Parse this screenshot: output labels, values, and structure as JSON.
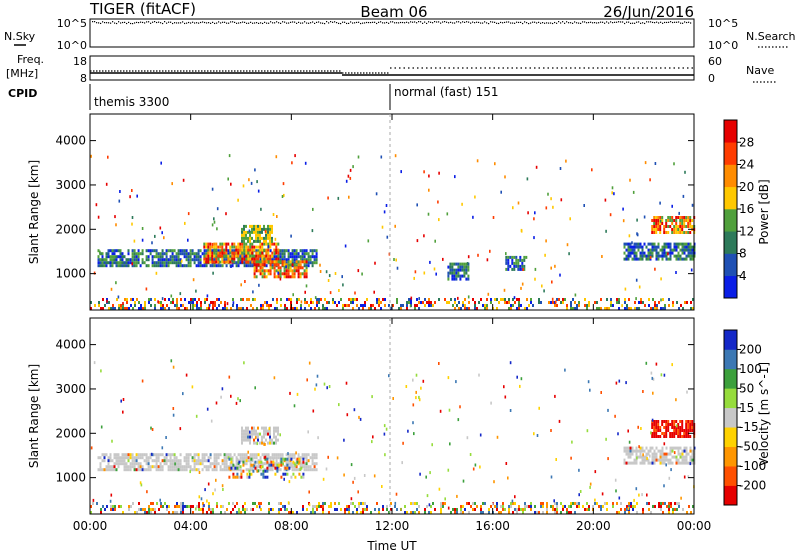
{
  "header": {
    "title": "TIGER (fitACF)",
    "beam": "Beam 06",
    "date": "26/Jun/2016"
  },
  "noise_panel": {
    "left_label": "N.Sky",
    "right_label": "N.Search",
    "left_ticks": [
      "10^5",
      "10^0"
    ],
    "right_ticks": [
      "10^5",
      "10^0"
    ]
  },
  "freq_panel": {
    "left_label_1": "Freq.",
    "left_label_2": "[MHz]",
    "right_label": "Nave",
    "left_ticks": [
      "18",
      "8"
    ],
    "right_ticks": [
      "60",
      "0"
    ]
  },
  "cpid_panel": {
    "label": "CPID",
    "segments": [
      {
        "name": "themis 3300",
        "start_hour": 0
      },
      {
        "name": "normal (fast) 151",
        "start_hour": 12
      }
    ]
  },
  "chart_data": [
    {
      "type": "heatmap",
      "panel": "power",
      "xlabel": "",
      "ylabel": "Slant Range [km]",
      "xlim": [
        0,
        24
      ],
      "ylim": [
        180,
        4600
      ],
      "yticks": [
        "1000",
        "2000",
        "3000",
        "4000"
      ],
      "colorbar_label": "Power [dB]",
      "colorbar_ticks": [
        "4",
        "8",
        "12",
        "16",
        "20",
        "24",
        "28"
      ],
      "colorbar_colors": [
        "#0a1ee6",
        "#1f50b4",
        "#2d7a5a",
        "#50a03c",
        "#ffc800",
        "#ff8c00",
        "#ff3c00",
        "#e60000"
      ],
      "regions": [
        {
          "t": [
            0.3,
            9.0
          ],
          "r": [
            1180,
            1550
          ],
          "level": "low"
        },
        {
          "t": [
            4.5,
            7.5
          ],
          "r": [
            1250,
            1700
          ],
          "level": "high"
        },
        {
          "t": [
            6.5,
            8.6
          ],
          "r": [
            950,
            1300
          ],
          "level": "high"
        },
        {
          "t": [
            6.0,
            7.2
          ],
          "r": [
            1750,
            2100
          ],
          "level": "mid"
        },
        {
          "t": [
            0.0,
            24.0
          ],
          "r": [
            200,
            450
          ],
          "level": "mixed"
        },
        {
          "t": [
            22.3,
            24.0
          ],
          "r": [
            1900,
            2300
          ],
          "level": "high"
        },
        {
          "t": [
            21.2,
            24.0
          ],
          "r": [
            1300,
            1700
          ],
          "level": "low"
        },
        {
          "t": [
            14.2,
            15.0
          ],
          "r": [
            900,
            1250
          ],
          "level": "low"
        },
        {
          "t": [
            16.5,
            17.3
          ],
          "r": [
            1100,
            1400
          ],
          "level": "low"
        }
      ]
    },
    {
      "type": "heatmap",
      "panel": "velocity",
      "xlabel": "Time UT",
      "ylabel": "Slant Range [km]",
      "xlim": [
        0,
        24
      ],
      "ylim": [
        180,
        4600
      ],
      "xticks": [
        "00:00",
        "04:00",
        "08:00",
        "12:00",
        "16:00",
        "20:00",
        "00:00"
      ],
      "yticks": [
        "1000",
        "2000",
        "3000",
        "4000"
      ],
      "colorbar_label": "Velocity [m s^-1]",
      "colorbar_ticks": [
        "200",
        "100",
        "50",
        "15",
        "-15",
        "-50",
        "-100",
        "-200"
      ],
      "colorbar_colors": [
        "#1428c8",
        "#3c78b4",
        "#3ca03c",
        "#96dc3c",
        "#c8c8c8",
        "#ffd200",
        "#ff9600",
        "#ff5000",
        "#e60000"
      ],
      "regions": [
        {
          "t": [
            0.3,
            9.0
          ],
          "r": [
            1180,
            1550
          ],
          "level": "ground"
        },
        {
          "t": [
            5.5,
            8.5
          ],
          "r": [
            1000,
            1450
          ],
          "level": "mixed"
        },
        {
          "t": [
            6.0,
            7.5
          ],
          "r": [
            1800,
            2150
          ],
          "level": "ground"
        },
        {
          "t": [
            0.0,
            24.0
          ],
          "r": [
            200,
            450
          ],
          "level": "mixed"
        },
        {
          "t": [
            22.3,
            24.0
          ],
          "r": [
            1900,
            2300
          ],
          "level": "negative"
        },
        {
          "t": [
            21.2,
            24.0
          ],
          "r": [
            1300,
            1700
          ],
          "level": "ground"
        }
      ]
    }
  ]
}
